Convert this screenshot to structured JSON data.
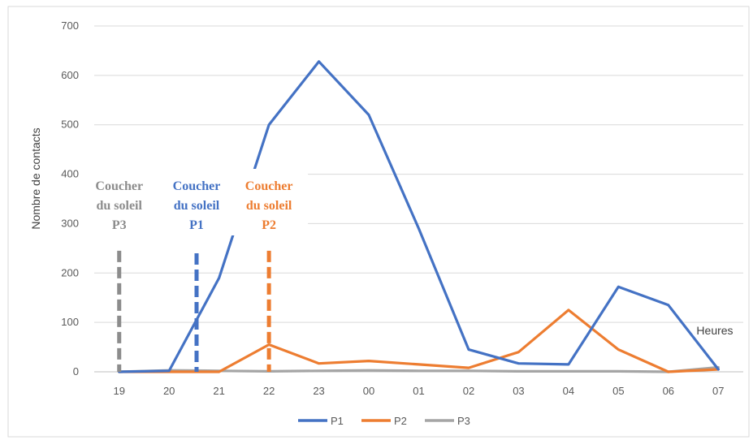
{
  "chart_data": {
    "type": "line",
    "title": "",
    "xlabel": "Heures",
    "ylabel": "Nombre de contacts",
    "categories": [
      "19",
      "20",
      "21",
      "22",
      "23",
      "00",
      "01",
      "02",
      "03",
      "04",
      "05",
      "06",
      "07"
    ],
    "ylim": [
      0,
      700
    ],
    "yticks": [
      0,
      100,
      200,
      300,
      400,
      500,
      600,
      700
    ],
    "grid": true,
    "legend": "bottom",
    "series": [
      {
        "name": "P1",
        "color": "#4472C4",
        "values": [
          0,
          2,
          190,
          500,
          628,
          520,
          290,
          45,
          17,
          15,
          172,
          135,
          5
        ]
      },
      {
        "name": "P2",
        "color": "#ED7D31",
        "values": [
          0,
          0,
          0,
          55,
          17,
          22,
          15,
          8,
          40,
          125,
          45,
          0,
          5
        ]
      },
      {
        "name": "P3",
        "color": "#A5A5A5",
        "values": [
          0,
          3,
          2,
          1,
          2,
          3,
          2,
          2,
          1,
          1,
          1,
          0,
          9
        ]
      }
    ],
    "annotations": [
      {
        "lines": [
          "Coucher",
          "du soleil",
          "P3"
        ],
        "x": 19.0,
        "color": "#8C8C8C",
        "dash_top": 245
      },
      {
        "lines": [
          "Coucher",
          "du soleil",
          "P1"
        ],
        "x": 20.55,
        "color": "#4472C4",
        "dash_top": 240
      },
      {
        "lines": [
          "Coucher",
          "du soleil",
          "P2"
        ],
        "x": 22.0,
        "color": "#ED7D31",
        "dash_top": 245
      }
    ]
  }
}
